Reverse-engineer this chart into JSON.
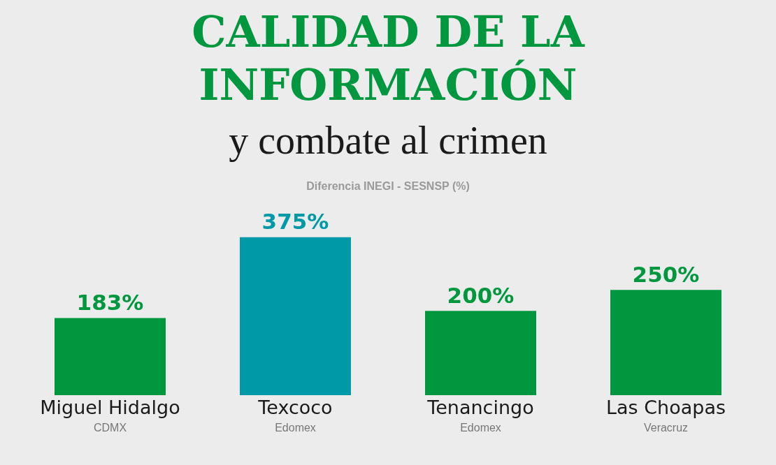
{
  "chart_data": {
    "type": "bar",
    "title": "CALIDAD DE LA INFORMACIÓN",
    "subtitle": "y combate al crimen",
    "ylabel": "Diferencia INEGI - SESNSP (%)",
    "categories": [
      "Miguel Hidalgo\nCDMX",
      "Texcoco\nEdomex",
      "Tenancingo\nEdomex",
      "Las Choapas\nVeracruz"
    ],
    "values": [
      183,
      375,
      200,
      250
    ],
    "colors": [
      "#00973e",
      "#0099a8",
      "#00973e",
      "#00973e"
    ],
    "value_labels": [
      "183%",
      "375%",
      "200%",
      "250%"
    ]
  }
}
